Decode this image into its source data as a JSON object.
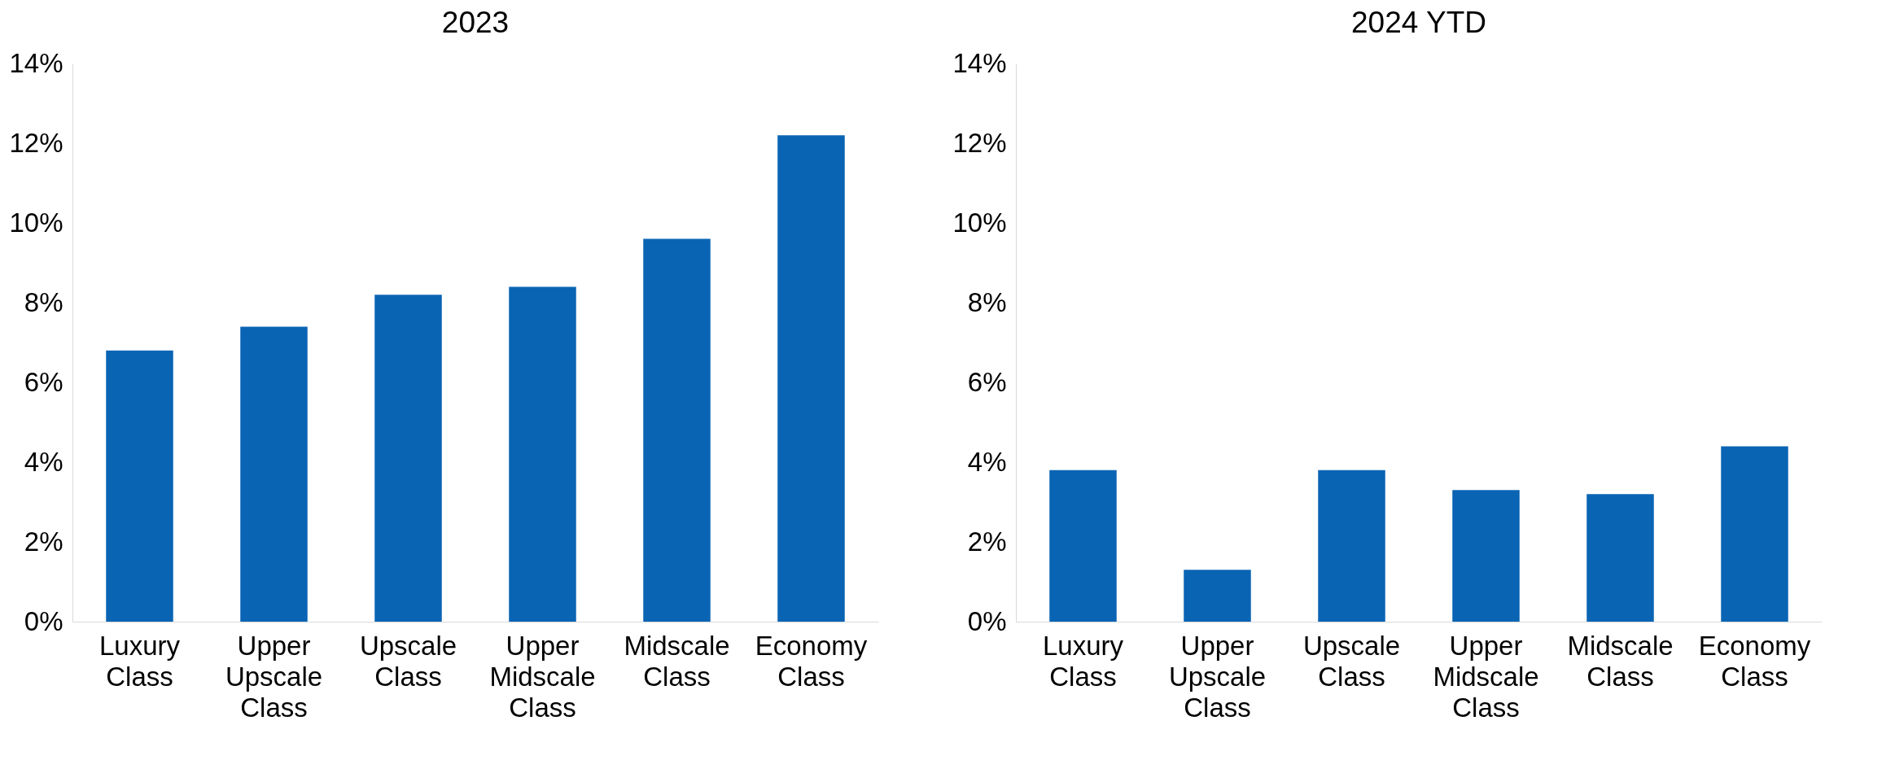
{
  "chart_data": [
    {
      "type": "bar",
      "title": "2023",
      "categories": [
        "Luxury Class",
        "Upper Upscale Class",
        "Upscale Class",
        "Upper Midscale Class",
        "Midscale Class",
        "Economy Class"
      ],
      "values": [
        6.8,
        7.4,
        8.2,
        8.4,
        9.6,
        12.2
      ],
      "color": "#0a64b4",
      "ylim": [
        0,
        14
      ],
      "yticks": [
        {
          "value": 0,
          "label": "0%"
        },
        {
          "value": 2,
          "label": "2%"
        },
        {
          "value": 4,
          "label": "4%"
        },
        {
          "value": 6,
          "label": "6%"
        },
        {
          "value": 8,
          "label": "8%"
        },
        {
          "value": 10,
          "label": "10%"
        },
        {
          "value": 12,
          "label": "12%"
        },
        {
          "value": 14,
          "label": "14%"
        }
      ],
      "grid": false
    },
    {
      "type": "bar",
      "title": "2024 YTD",
      "categories": [
        "Luxury Class",
        "Upper Upscale Class",
        "Upscale Class",
        "Upper Midscale Class",
        "Midscale Class",
        "Economy Class"
      ],
      "values": [
        3.8,
        1.3,
        3.8,
        3.3,
        3.2,
        4.4
      ],
      "color": "#0a64b4",
      "ylim": [
        0,
        14
      ],
      "yticks": [
        {
          "value": 0,
          "label": "0%"
        },
        {
          "value": 2,
          "label": "2%"
        },
        {
          "value": 4,
          "label": "4%"
        },
        {
          "value": 6,
          "label": "6%"
        },
        {
          "value": 8,
          "label": "8%"
        },
        {
          "value": 10,
          "label": "10%"
        },
        {
          "value": 12,
          "label": "12%"
        },
        {
          "value": 14,
          "label": "14%"
        }
      ],
      "grid": false
    }
  ]
}
